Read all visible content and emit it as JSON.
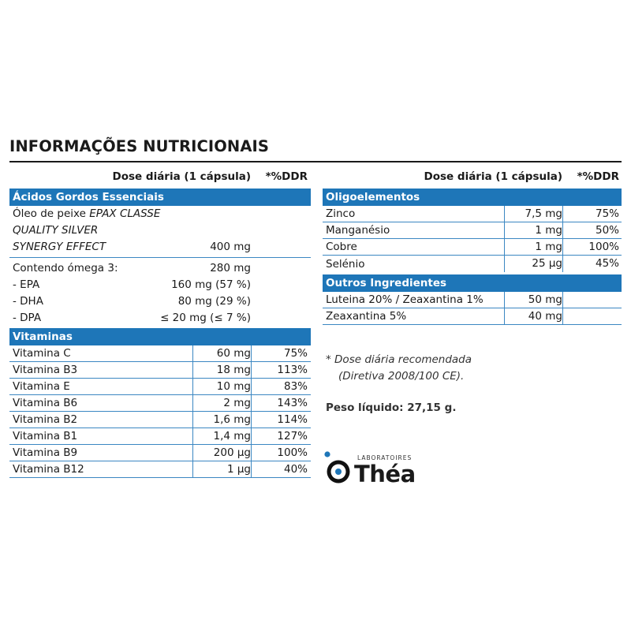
{
  "title": "INFORMAÇÕES NUTRICIONAIS",
  "left": {
    "header": {
      "dose": "Dose diária (1 cápsula)",
      "ddr": "*%DDR"
    },
    "sections": {
      "fatty_acids": "Ácidos Gordos Essenciais",
      "vitamins": "Vitaminas"
    },
    "fish_oil": {
      "line1_plain": "Óleo de peixe ",
      "line1_italic": "EPAX CLASSE",
      "line2": "QUALITY SILVER",
      "line3": "SYNERGY EFFECT",
      "dose": "400 mg"
    },
    "omega": [
      {
        "name": "Contendo ómega 3:",
        "dose": "280 mg"
      },
      {
        "name": "- EPA",
        "dose": "160 mg (57 %)"
      },
      {
        "name": "- DHA",
        "dose": "80 mg (29 %)"
      },
      {
        "name": "- DPA",
        "dose": "≤ 20 mg (≤ 7 %)"
      }
    ],
    "vitamins": [
      {
        "name": "Vitamina C",
        "dose": "60 mg",
        "ddr": "75%"
      },
      {
        "name": "Vitamina B3",
        "dose": "18 mg",
        "ddr": "113%"
      },
      {
        "name": "Vitamina E",
        "dose": "10 mg",
        "ddr": "83%"
      },
      {
        "name": "Vitamina B6",
        "dose": "2 mg",
        "ddr": "143%"
      },
      {
        "name": "Vitamina B2",
        "dose": "1,6 mg",
        "ddr": "114%"
      },
      {
        "name": "Vitamina B1",
        "dose": "1,4 mg",
        "ddr": "127%"
      },
      {
        "name": "Vitamina B9",
        "dose": "200 μg",
        "ddr": "100%"
      },
      {
        "name": "Vitamina B12",
        "dose": "1 μg",
        "ddr": "40%"
      }
    ]
  },
  "right": {
    "header": {
      "dose": "Dose diária (1 cápsula)",
      "ddr": "*%DDR"
    },
    "sections": {
      "trace": "Oligoelementos",
      "other": "Outros Ingredientes"
    },
    "trace": [
      {
        "name": "Zinco",
        "dose": "7,5 mg",
        "ddr": "75%"
      },
      {
        "name": "Manganésio",
        "dose": "1 mg",
        "ddr": "50%"
      },
      {
        "name": "Cobre",
        "dose": "1 mg",
        "ddr": "100%"
      },
      {
        "name": "Selénio",
        "dose": "25 μg",
        "ddr": "45%"
      }
    ],
    "other": [
      {
        "name": "Luteina 20% / Zeaxantina 1%",
        "dose": "50 mg",
        "ddr": ""
      },
      {
        "name": "Zeaxantina 5%",
        "dose": "40 mg",
        "ddr": ""
      }
    ]
  },
  "footnote": {
    "line1": "*  Dose diária recomendada",
    "line2": "(Diretiva 2008/100 CE)."
  },
  "net_weight": "Peso líquido: 27,15 g.",
  "logo": {
    "lab": "LABORATOIRES",
    "name": "Théa",
    "icon": "thea-logo-icon"
  },
  "colors": {
    "accent": "#1e76b8",
    "rule": "#3b87c2",
    "text": "#1a1a1a"
  }
}
